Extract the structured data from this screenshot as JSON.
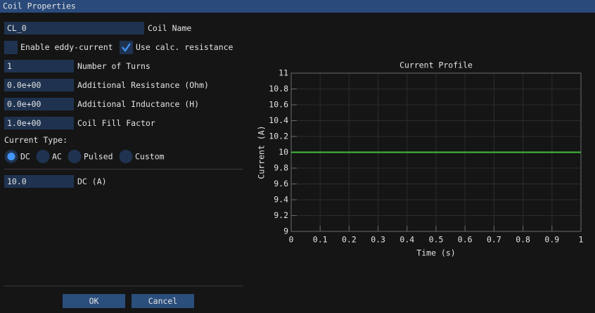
{
  "window": {
    "title": "Coil Properties"
  },
  "form": {
    "coil_name": {
      "value": "CL_0",
      "label": "Coil Name"
    },
    "checkboxes": [
      {
        "label": "Enable eddy-current",
        "checked": false
      },
      {
        "label": "Use calc. resistance",
        "checked": true
      }
    ],
    "fields": [
      {
        "value": "1",
        "label": "Number of Turns"
      },
      {
        "value": "0.0e+00",
        "label": "Additional Resistance (Ohm)"
      },
      {
        "value": "0.0e+00",
        "label": "Additional Inductance (H)"
      },
      {
        "value": "1.0e+00",
        "label": "Coil Fill Factor"
      }
    ],
    "current_type": {
      "label": "Current Type:",
      "options": [
        "DC",
        "AC",
        "Pulsed",
        "Custom"
      ],
      "selected": 0
    },
    "dc": {
      "value": "10.0",
      "label": "DC (A)"
    }
  },
  "chart_data": {
    "type": "line",
    "title": "Current Profile",
    "x_label": "Time (s)",
    "y_label": "Current (A)",
    "x": [
      0,
      1
    ],
    "values": [
      10,
      10
    ],
    "color": "#3ec03e",
    "xlim": [
      0,
      1
    ],
    "ylim": [
      9,
      11
    ],
    "xticks": [
      0,
      0.1,
      0.2,
      0.3,
      0.4,
      0.5,
      0.6,
      0.7,
      0.8,
      0.9,
      1
    ],
    "yticks": [
      9,
      9.2,
      9.4,
      9.6,
      9.8,
      10,
      10.2,
      10.4,
      10.6,
      10.8,
      11
    ],
    "grid": true
  },
  "buttons": [
    "OK",
    "Cancel"
  ]
}
